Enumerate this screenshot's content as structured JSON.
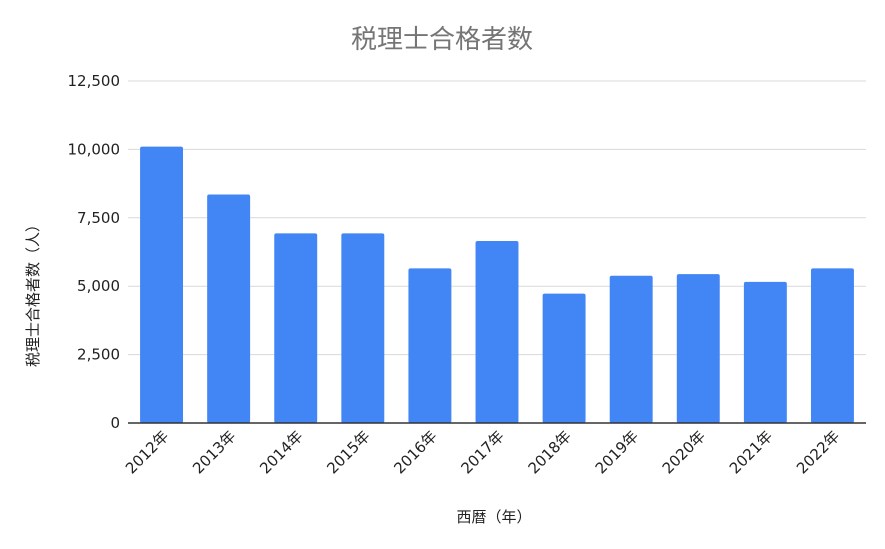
{
  "chart_data": {
    "type": "bar",
    "title": "税理士合格者数",
    "xlabel": "西暦（年）",
    "ylabel": "税理士合格者数（人）",
    "categories": [
      "2012年",
      "2013年",
      "2014年",
      "2015年",
      "2016年",
      "2017年",
      "2018年",
      "2019年",
      "2020年",
      "2021年",
      "2022年"
    ],
    "values": [
      10100,
      8350,
      6930,
      6930,
      5650,
      6650,
      4730,
      5380,
      5440,
      5160,
      5650
    ],
    "ylim": [
      0,
      12500
    ],
    "yticks": [
      0,
      2500,
      5000,
      7500,
      10000,
      12500
    ],
    "ytick_labels": [
      "0",
      "2,500",
      "5,000",
      "7,500",
      "10,000",
      "12,500"
    ],
    "grid": true,
    "legend": "none",
    "bar_color": "#4285f4"
  }
}
